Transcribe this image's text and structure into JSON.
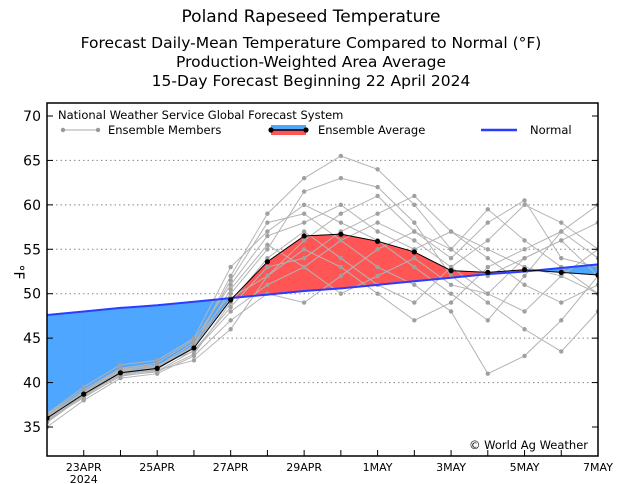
{
  "chart_data": {
    "type": "line",
    "title": "Poland Rapeseed Temperature",
    "subtitles": [
      "Forecast Daily-Mean Temperature Compared to Normal (°F)",
      "Production-Weighted Area Average",
      "15-Day Forecast Beginning 22 April 2024"
    ],
    "ylabel": "°F",
    "xlabel": "",
    "ylim": [
      32,
      72
    ],
    "yticks": [
      35,
      40,
      45,
      50,
      55,
      60,
      65,
      70
    ],
    "xlim": [
      0,
      15
    ],
    "x_days": [
      0,
      1,
      2,
      3,
      4,
      5,
      6,
      7,
      8,
      9,
      10,
      11,
      12,
      13,
      14,
      15
    ],
    "xtick_labels": [
      {
        "day": 1,
        "label": "23APR",
        "sub": "2024"
      },
      {
        "day": 3,
        "label": "25APR"
      },
      {
        "day": 5,
        "label": "27APR"
      },
      {
        "day": 7,
        "label": "29APR"
      },
      {
        "day": 9,
        "label": "1MAY"
      },
      {
        "day": 11,
        "label": "3MAY"
      },
      {
        "day": 13,
        "label": "5MAY"
      },
      {
        "day": 15,
        "label": "7MAY"
      }
    ],
    "grid": "dotted horizontal",
    "legend_header": "National Weather Service Global Forecast System",
    "legend": [
      {
        "name": "Ensemble Members",
        "color": "#a8a8a8"
      },
      {
        "name": "Ensemble Average",
        "color": "#000000"
      },
      {
        "name": "Normal",
        "color": "#2a3cff"
      }
    ],
    "colors": {
      "above": "#ff5555",
      "below": "#4ea6ff",
      "normal": "#2a3cff",
      "members": "#b4b4b4",
      "member_points": "#a0a0a0"
    },
    "series": [
      {
        "name": "Ensemble Average",
        "values": [
          36.0,
          38.7,
          41.1,
          41.6,
          43.9,
          49.3,
          53.6,
          56.5,
          56.7,
          55.9,
          54.7,
          52.6,
          52.4,
          52.7,
          52.4,
          52.1
        ]
      },
      {
        "name": "Normal",
        "values": [
          47.6,
          48.0,
          48.4,
          48.7,
          49.1,
          49.5,
          49.9,
          50.3,
          50.6,
          51.0,
          51.4,
          51.8,
          52.2,
          52.5,
          52.9,
          53.3
        ]
      }
    ],
    "members": [
      [
        35.5,
        38.5,
        41.0,
        41.5,
        44.0,
        52.0,
        59.0,
        63.0,
        65.5,
        64.0,
        60.0,
        55.0,
        52.0,
        54.0,
        56.0,
        58.0
      ],
      [
        36.0,
        39.0,
        41.5,
        42.0,
        43.5,
        48.0,
        51.0,
        53.0,
        56.0,
        58.0,
        56.0,
        53.0,
        50.0,
        48.0,
        52.0,
        55.0
      ],
      [
        36.5,
        39.5,
        42.0,
        42.5,
        45.0,
        53.0,
        57.0,
        60.0,
        58.0,
        56.0,
        53.0,
        50.0,
        47.0,
        52.0,
        57.0,
        54.0
      ],
      [
        35.0,
        38.0,
        40.5,
        41.0,
        43.0,
        47.0,
        50.0,
        49.0,
        52.0,
        55.0,
        57.0,
        55.0,
        59.5,
        56.0,
        53.0,
        50.0
      ],
      [
        36.2,
        38.8,
        41.2,
        41.8,
        44.5,
        50.0,
        55.0,
        61.5,
        63.0,
        62.0,
        58.0,
        52.0,
        49.0,
        46.0,
        43.5,
        48.0
      ],
      [
        35.8,
        38.3,
        40.8,
        41.2,
        43.2,
        49.0,
        54.0,
        57.0,
        54.0,
        51.0,
        49.0,
        53.0,
        56.0,
        60.0,
        58.0,
        55.0
      ],
      [
        36.4,
        39.2,
        41.6,
        42.2,
        44.8,
        51.0,
        56.5,
        58.0,
        60.0,
        57.0,
        55.0,
        57.0,
        54.0,
        51.0,
        49.0,
        51.0
      ],
      [
        35.6,
        38.6,
        40.9,
        41.4,
        42.5,
        46.0,
        52.0,
        55.0,
        53.0,
        50.0,
        47.0,
        49.0,
        53.0,
        55.0,
        57.0,
        60.0
      ],
      [
        36.1,
        39.0,
        41.3,
        41.7,
        44.2,
        51.5,
        58.0,
        59.0,
        56.0,
        53.0,
        51.0,
        48.0,
        41.0,
        43.0,
        47.0,
        52.0
      ],
      [
        35.9,
        38.4,
        40.7,
        41.3,
        43.6,
        48.5,
        53.0,
        54.0,
        57.0,
        59.0,
        61.0,
        57.0,
        55.0,
        53.0,
        52.0,
        50.0
      ],
      [
        36.3,
        38.9,
        41.4,
        41.9,
        44.0,
        49.5,
        52.0,
        56.0,
        59.0,
        61.0,
        57.0,
        54.0,
        58.0,
        60.5,
        54.0,
        53.0
      ],
      [
        35.7,
        38.7,
        41.0,
        41.6,
        43.8,
        50.5,
        55.5,
        53.0,
        50.0,
        52.0,
        54.0,
        51.0,
        50.0,
        54.0,
        56.0,
        52.0
      ]
    ],
    "annotation": "© World Ag Weather"
  }
}
